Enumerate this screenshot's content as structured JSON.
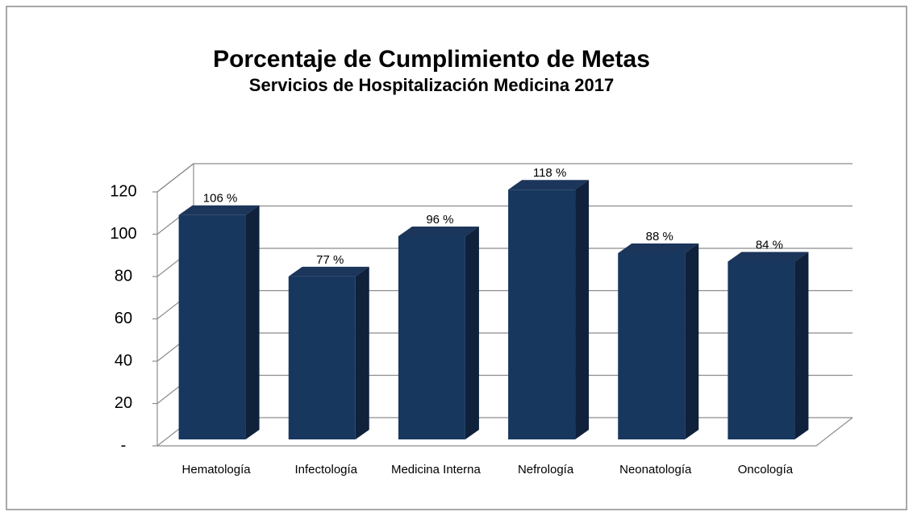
{
  "chart_data": {
    "type": "bar3d",
    "title": "Porcentaje de Cumplimiento de Metas",
    "subtitle": "Servicios de Hospitalización Medicina 2017",
    "categories": [
      "Hematología",
      "Infectología",
      "Medicina Interna",
      "Nefrología",
      "Neonatología",
      "Oncología"
    ],
    "values": [
      106,
      77,
      96,
      118,
      88,
      84
    ],
    "value_labels": [
      "106 %",
      "77 %",
      "96 %",
      "118 %",
      "88 %",
      "84 %"
    ],
    "color": "#17375e",
    "ylim": [
      0,
      120
    ],
    "yticks": [
      {
        "value": 0,
        "label": "-"
      },
      20,
      40,
      60,
      80,
      100,
      120
    ],
    "grid": true
  }
}
